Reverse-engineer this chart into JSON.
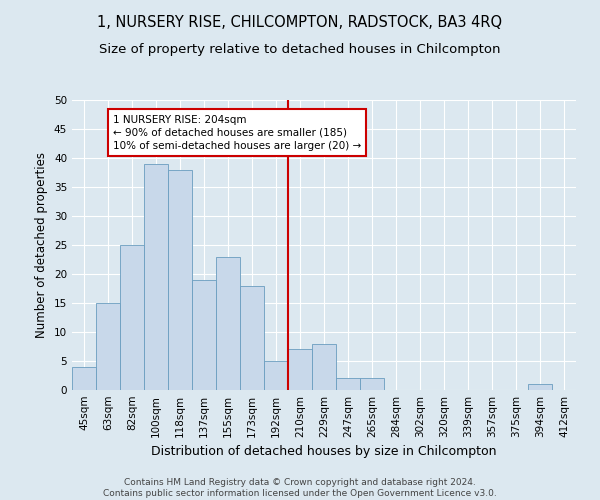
{
  "title": "1, NURSERY RISE, CHILCOMPTON, RADSTOCK, BA3 4RQ",
  "subtitle": "Size of property relative to detached houses in Chilcompton",
  "xlabel": "Distribution of detached houses by size in Chilcompton",
  "ylabel": "Number of detached properties",
  "footer_line1": "Contains HM Land Registry data © Crown copyright and database right 2024.",
  "footer_line2": "Contains public sector information licensed under the Open Government Licence v3.0.",
  "categories": [
    "45sqm",
    "63sqm",
    "82sqm",
    "100sqm",
    "118sqm",
    "137sqm",
    "155sqm",
    "173sqm",
    "192sqm",
    "210sqm",
    "229sqm",
    "247sqm",
    "265sqm",
    "284sqm",
    "302sqm",
    "320sqm",
    "339sqm",
    "357sqm",
    "375sqm",
    "394sqm",
    "412sqm"
  ],
  "values": [
    4,
    15,
    25,
    39,
    38,
    19,
    23,
    18,
    5,
    7,
    8,
    2,
    2,
    0,
    0,
    0,
    0,
    0,
    0,
    1,
    0
  ],
  "bar_color": "#c8d8ea",
  "bar_edge_color": "#6a9dbf",
  "background_color": "#dce8f0",
  "grid_color": "#ffffff",
  "annotation_box_text_line1": "1 NURSERY RISE: 204sqm",
  "annotation_box_text_line2": "← 90% of detached houses are smaller (185)",
  "annotation_box_text_line3": "10% of semi-detached houses are larger (20) →",
  "annotation_box_color": "#cc0000",
  "vline_x_index": 8.5,
  "vline_color": "#cc0000",
  "ylim": [
    0,
    50
  ],
  "yticks": [
    0,
    5,
    10,
    15,
    20,
    25,
    30,
    35,
    40,
    45,
    50
  ],
  "title_fontsize": 10.5,
  "subtitle_fontsize": 9.5,
  "xlabel_fontsize": 9,
  "ylabel_fontsize": 8.5,
  "tick_fontsize": 7.5,
  "annotation_fontsize": 7.5,
  "footer_fontsize": 6.5
}
